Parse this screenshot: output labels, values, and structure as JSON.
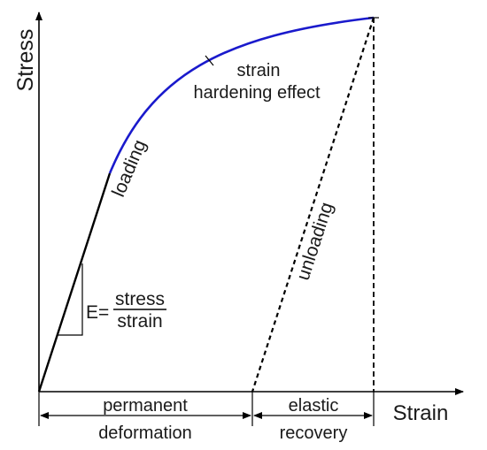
{
  "axes": {
    "y_label": "Stress",
    "x_label": "Strain"
  },
  "curve_labels": {
    "loading": "loading",
    "unloading": "unloading",
    "hardening_line1": "strain",
    "hardening_line2": "hardening effect"
  },
  "modulus": {
    "lhs": "E=",
    "numerator": "stress",
    "denominator": "strain"
  },
  "regions": {
    "permanent_line1": "permanent",
    "permanent_line2": "deformation",
    "elastic_line1": "elastic",
    "elastic_line2": "recovery"
  },
  "colors": {
    "hardening_curve": "#1a1acc",
    "lines": "#000000"
  }
}
